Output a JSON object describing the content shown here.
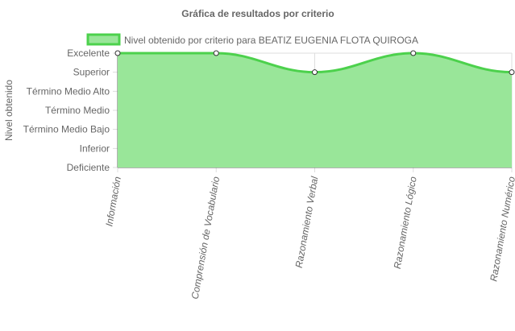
{
  "chart_data": {
    "type": "area",
    "title": "Gráfica de resultados por criterio",
    "xlabel": "",
    "ylabel": "Nivel obtenido",
    "categories": [
      "Información",
      "Comprensión de Vocabulario",
      "Razonamiento Verbal",
      "Razonamiento Lógico",
      "Razonamiento Numérico"
    ],
    "y_levels": [
      "Deficiente",
      "Inferior",
      "Término Medio Bajo",
      "Término Medio",
      "Término Medio Alto",
      "Superior",
      "Excelente"
    ],
    "series": [
      {
        "name": "Nivel obtenido por criterio para BEATIZ EUGENIA FLOTA QUIROGA",
        "values": [
          "Excelente",
          "Excelente",
          "Superior",
          "Excelente",
          "Superior"
        ]
      }
    ],
    "grid": true,
    "legend_position": "top",
    "colors": {
      "fill": "#99e699",
      "line": "#4cd14c",
      "grid": "#dddddd",
      "axis": "#666666",
      "point_fill": "#ffffff",
      "point_stroke": "#333333"
    }
  }
}
